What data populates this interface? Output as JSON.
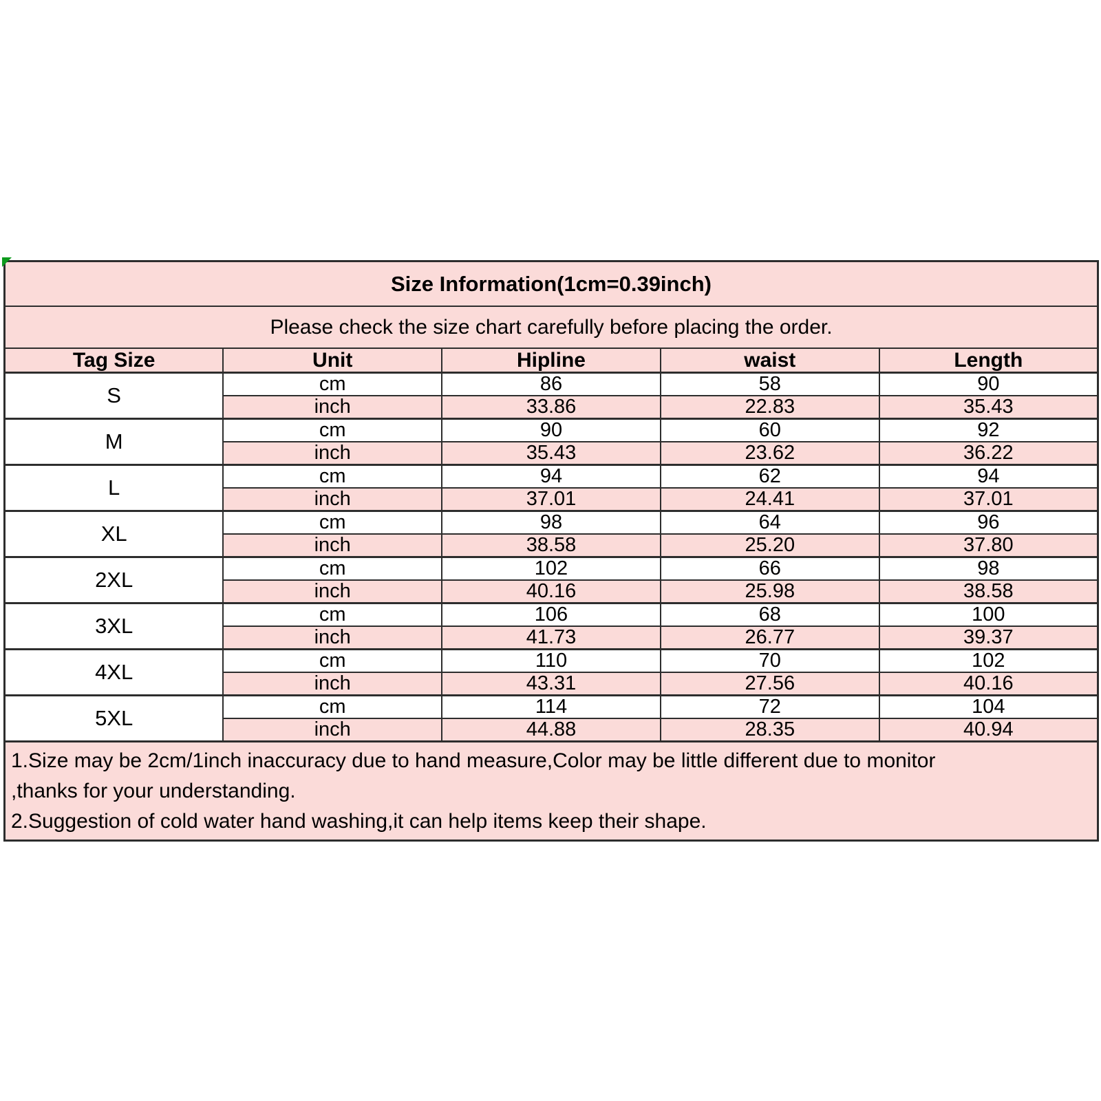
{
  "colors": {
    "pink_fill": "#fbdbd9",
    "white_fill": "#ffffff",
    "border": "#2d2d2d",
    "corner_marker_green": "#0d9a1d",
    "text": "#000000"
  },
  "labels": {
    "cm": "cm",
    "inch": "inch"
  },
  "chart_data": {
    "type": "table",
    "title": "Size Information(1cm=0.39inch)",
    "subtitle": "Please check the size chart carefully before placing the order.",
    "columns": [
      "Tag Size",
      "Unit",
      "Hipline",
      "waist",
      "Length"
    ],
    "rows": [
      {
        "tag": "S",
        "cm": [
          "86",
          "58",
          "90"
        ],
        "inch": [
          "33.86",
          "22.83",
          "35.43"
        ]
      },
      {
        "tag": "M",
        "cm": [
          "90",
          "60",
          "92"
        ],
        "inch": [
          "35.43",
          "23.62",
          "36.22"
        ]
      },
      {
        "tag": "L",
        "cm": [
          "94",
          "62",
          "94"
        ],
        "inch": [
          "37.01",
          "24.41",
          "37.01"
        ]
      },
      {
        "tag": "XL",
        "cm": [
          "98",
          "64",
          "96"
        ],
        "inch": [
          "38.58",
          "25.20",
          "37.80"
        ]
      },
      {
        "tag": "2XL",
        "cm": [
          "102",
          "66",
          "98"
        ],
        "inch": [
          "40.16",
          "25.98",
          "38.58"
        ]
      },
      {
        "tag": "3XL",
        "cm": [
          "106",
          "68",
          "100"
        ],
        "inch": [
          "41.73",
          "26.77",
          "39.37"
        ]
      },
      {
        "tag": "4XL",
        "cm": [
          "110",
          "70",
          "102"
        ],
        "inch": [
          "43.31",
          "27.56",
          "40.16"
        ]
      },
      {
        "tag": "5XL",
        "cm": [
          "114",
          "72",
          "104"
        ],
        "inch": [
          "44.88",
          "28.35",
          "40.94"
        ]
      }
    ],
    "notes": [
      "1.Size may be 2cm/1inch inaccuracy due to hand measure,Color may be little different due to monitor",
      ",thanks for your understanding.",
      "2.Suggestion of cold water hand washing,it can help items keep their shape."
    ]
  }
}
